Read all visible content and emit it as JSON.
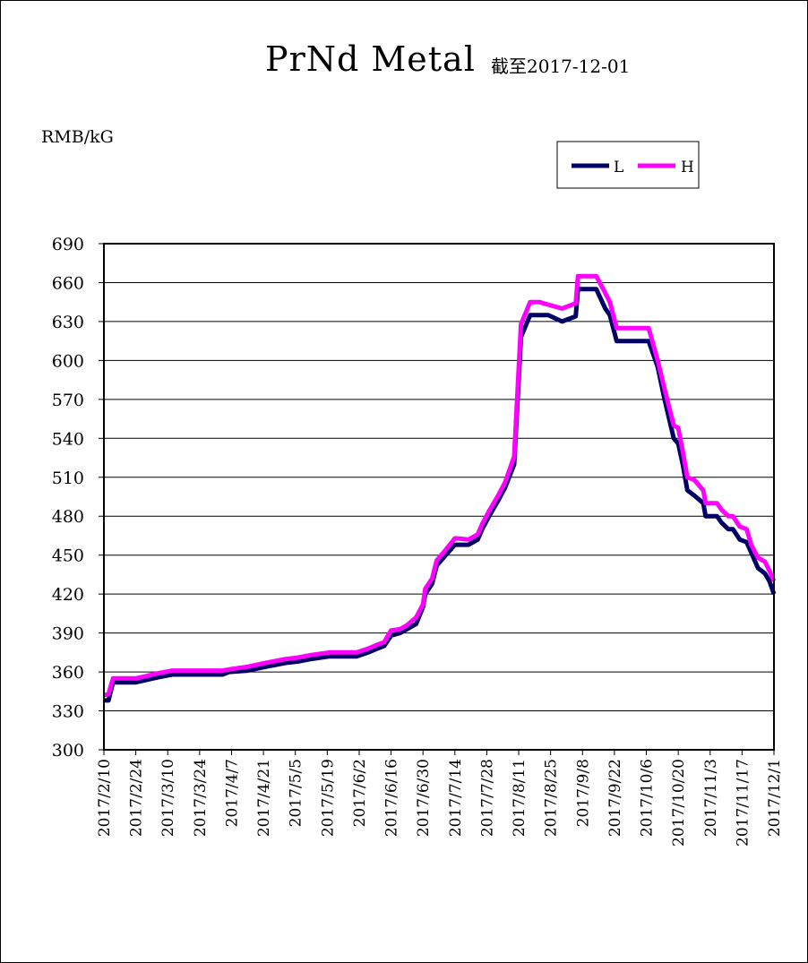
{
  "header": {
    "title": "PrNd Metal",
    "subtitle": "截至2017-12-01",
    "unit": "RMB/kG"
  },
  "chart_data": {
    "type": "line",
    "title": "PrNd Metal",
    "subtitle": "截至2017-12-01",
    "ylabel": "RMB/kG",
    "ylim": [
      300,
      690
    ],
    "y_ticks": [
      300,
      330,
      360,
      390,
      420,
      450,
      480,
      510,
      540,
      570,
      600,
      630,
      660,
      690
    ],
    "x_ticks": [
      "2017/2/10",
      "2017/2/24",
      "2017/3/10",
      "2017/3/24",
      "2017/4/7",
      "2017/4/21",
      "2017/5/5",
      "2017/5/19",
      "2017/6/2",
      "2017/6/16",
      "2017/6/30",
      "2017/7/14",
      "2017/7/28",
      "2017/8/11",
      "2017/8/25",
      "2017/9/8",
      "2017/9/22",
      "2017/10/6",
      "2017/10/20",
      "2017/11/3",
      "2017/11/17",
      "2017/12/1"
    ],
    "x_start": "2017-02-10",
    "x_end": "2017-12-01",
    "grid": true,
    "legend_position": "top-right",
    "series": [
      {
        "name": "L",
        "color": "#000066",
        "points": [
          [
            "2017-02-10",
            338
          ],
          [
            "2017-02-12",
            338
          ],
          [
            "2017-02-14",
            352
          ],
          [
            "2017-02-24",
            352
          ],
          [
            "2017-03-01",
            354
          ],
          [
            "2017-03-06",
            356
          ],
          [
            "2017-03-12",
            358
          ],
          [
            "2017-03-24",
            358
          ],
          [
            "2017-04-03",
            358
          ],
          [
            "2017-04-06",
            360
          ],
          [
            "2017-04-14",
            361
          ],
          [
            "2017-04-22",
            364
          ],
          [
            "2017-05-01",
            367
          ],
          [
            "2017-05-06",
            368
          ],
          [
            "2017-05-12",
            370
          ],
          [
            "2017-05-20",
            372
          ],
          [
            "2017-06-01",
            372
          ],
          [
            "2017-06-06",
            375
          ],
          [
            "2017-06-10",
            378
          ],
          [
            "2017-06-13",
            380
          ],
          [
            "2017-06-16",
            388
          ],
          [
            "2017-06-20",
            390
          ],
          [
            "2017-06-23",
            393
          ],
          [
            "2017-06-27",
            397
          ],
          [
            "2017-06-30",
            410
          ],
          [
            "2017-07-01",
            420
          ],
          [
            "2017-07-04",
            428
          ],
          [
            "2017-07-06",
            442
          ],
          [
            "2017-07-09",
            448
          ],
          [
            "2017-07-14",
            458
          ],
          [
            "2017-07-20",
            458
          ],
          [
            "2017-07-24",
            462
          ],
          [
            "2017-07-26",
            470
          ],
          [
            "2017-07-29",
            480
          ],
          [
            "2017-08-02",
            492
          ],
          [
            "2017-08-05",
            502
          ],
          [
            "2017-08-09",
            520
          ],
          [
            "2017-08-12",
            618
          ],
          [
            "2017-08-16",
            635
          ],
          [
            "2017-08-20",
            635
          ],
          [
            "2017-08-24",
            635
          ],
          [
            "2017-08-30",
            630
          ],
          [
            "2017-09-02",
            632
          ],
          [
            "2017-09-05",
            634
          ],
          [
            "2017-09-06",
            655
          ],
          [
            "2017-09-14",
            655
          ],
          [
            "2017-09-18",
            640
          ],
          [
            "2017-09-20",
            635
          ],
          [
            "2017-09-23",
            615
          ],
          [
            "2017-10-07",
            615
          ],
          [
            "2017-10-11",
            595
          ],
          [
            "2017-10-14",
            570
          ],
          [
            "2017-10-18",
            540
          ],
          [
            "2017-10-20",
            536
          ],
          [
            "2017-10-22",
            520
          ],
          [
            "2017-10-24",
            500
          ],
          [
            "2017-10-27",
            496
          ],
          [
            "2017-10-31",
            490
          ],
          [
            "2017-11-01",
            480
          ],
          [
            "2017-11-06",
            480
          ],
          [
            "2017-11-08",
            475
          ],
          [
            "2017-11-11",
            470
          ],
          [
            "2017-11-13",
            470
          ],
          [
            "2017-11-16",
            462
          ],
          [
            "2017-11-19",
            460
          ],
          [
            "2017-11-21",
            452
          ],
          [
            "2017-11-24",
            440
          ],
          [
            "2017-11-27",
            436
          ],
          [
            "2017-11-29",
            430
          ],
          [
            "2017-12-01",
            420
          ]
        ]
      },
      {
        "name": "H",
        "color": "#FF00FF",
        "points": [
          [
            "2017-02-10",
            342
          ],
          [
            "2017-02-12",
            343
          ],
          [
            "2017-02-14",
            355
          ],
          [
            "2017-02-24",
            355
          ],
          [
            "2017-03-01",
            357
          ],
          [
            "2017-03-06",
            359
          ],
          [
            "2017-03-12",
            361
          ],
          [
            "2017-03-24",
            361
          ],
          [
            "2017-04-03",
            361
          ],
          [
            "2017-04-06",
            362
          ],
          [
            "2017-04-14",
            364
          ],
          [
            "2017-04-22",
            367
          ],
          [
            "2017-05-01",
            370
          ],
          [
            "2017-05-06",
            371
          ],
          [
            "2017-05-12",
            373
          ],
          [
            "2017-05-20",
            375
          ],
          [
            "2017-06-01",
            375
          ],
          [
            "2017-06-06",
            378
          ],
          [
            "2017-06-10",
            381
          ],
          [
            "2017-06-13",
            383
          ],
          [
            "2017-06-16",
            392
          ],
          [
            "2017-06-20",
            393
          ],
          [
            "2017-06-23",
            396
          ],
          [
            "2017-06-27",
            402
          ],
          [
            "2017-06-30",
            412
          ],
          [
            "2017-07-01",
            424
          ],
          [
            "2017-07-04",
            432
          ],
          [
            "2017-07-06",
            446
          ],
          [
            "2017-07-09",
            452
          ],
          [
            "2017-07-14",
            463
          ],
          [
            "2017-07-20",
            462
          ],
          [
            "2017-07-24",
            466
          ],
          [
            "2017-07-26",
            474
          ],
          [
            "2017-07-29",
            484
          ],
          [
            "2017-08-02",
            496
          ],
          [
            "2017-08-05",
            506
          ],
          [
            "2017-08-09",
            526
          ],
          [
            "2017-08-12",
            628
          ],
          [
            "2017-08-16",
            645
          ],
          [
            "2017-08-20",
            645
          ],
          [
            "2017-08-24",
            643
          ],
          [
            "2017-08-30",
            640
          ],
          [
            "2017-09-02",
            642
          ],
          [
            "2017-09-05",
            644
          ],
          [
            "2017-09-06",
            665
          ],
          [
            "2017-09-14",
            665
          ],
          [
            "2017-09-18",
            652
          ],
          [
            "2017-09-20",
            645
          ],
          [
            "2017-09-23",
            625
          ],
          [
            "2017-10-07",
            625
          ],
          [
            "2017-10-11",
            600
          ],
          [
            "2017-10-14",
            578
          ],
          [
            "2017-10-18",
            550
          ],
          [
            "2017-10-20",
            548
          ],
          [
            "2017-10-22",
            530
          ],
          [
            "2017-10-24",
            510
          ],
          [
            "2017-10-27",
            508
          ],
          [
            "2017-10-31",
            500
          ],
          [
            "2017-11-01",
            490
          ],
          [
            "2017-11-06",
            490
          ],
          [
            "2017-11-08",
            485
          ],
          [
            "2017-11-11",
            480
          ],
          [
            "2017-11-13",
            480
          ],
          [
            "2017-11-16",
            472
          ],
          [
            "2017-11-19",
            470
          ],
          [
            "2017-11-21",
            458
          ],
          [
            "2017-11-24",
            448
          ],
          [
            "2017-11-27",
            445
          ],
          [
            "2017-11-29",
            438
          ],
          [
            "2017-12-01",
            430
          ]
        ]
      }
    ]
  }
}
